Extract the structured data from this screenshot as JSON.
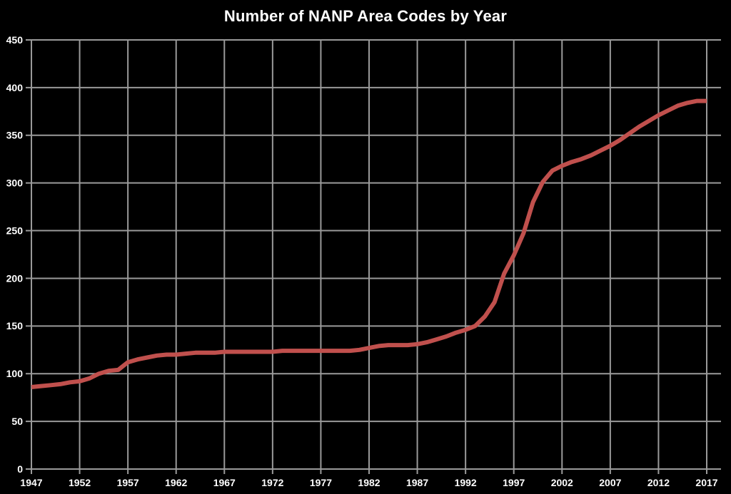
{
  "chart_data": {
    "type": "line",
    "title": "Number of NANP Area Codes by Year",
    "xlabel": "",
    "ylabel": "",
    "xlim": [
      1947,
      2017
    ],
    "ylim": [
      0,
      450
    ],
    "xticks": [
      1947,
      1952,
      1957,
      1962,
      1967,
      1972,
      1977,
      1982,
      1987,
      1992,
      1997,
      2002,
      2007,
      2012,
      2017
    ],
    "yticks": [
      0,
      50,
      100,
      150,
      200,
      250,
      300,
      350,
      400,
      450
    ],
    "grid": true,
    "legend": false,
    "x": [
      1947,
      1948,
      1949,
      1950,
      1951,
      1952,
      1953,
      1954,
      1955,
      1956,
      1957,
      1958,
      1959,
      1960,
      1961,
      1962,
      1963,
      1964,
      1965,
      1966,
      1967,
      1968,
      1969,
      1970,
      1971,
      1972,
      1973,
      1974,
      1975,
      1976,
      1977,
      1978,
      1979,
      1980,
      1981,
      1982,
      1983,
      1984,
      1985,
      1986,
      1987,
      1988,
      1989,
      1990,
      1991,
      1992,
      1993,
      1994,
      1995,
      1996,
      1997,
      1998,
      1999,
      2000,
      2001,
      2002,
      2003,
      2004,
      2005,
      2006,
      2007,
      2008,
      2009,
      2010,
      2011,
      2012,
      2013,
      2014,
      2015,
      2016,
      2017
    ],
    "series": [
      {
        "name": "Number of NANP area codes",
        "values": [
          86,
          87,
          88,
          89,
          91,
          92,
          95,
          100,
          103,
          104,
          112,
          115,
          117,
          119,
          120,
          120,
          121,
          122,
          122,
          122,
          123,
          123,
          123,
          123,
          123,
          123,
          124,
          124,
          124,
          124,
          124,
          124,
          124,
          124,
          125,
          127,
          129,
          130,
          130,
          130,
          131,
          133,
          136,
          139,
          143,
          146,
          150,
          160,
          175,
          205,
          224,
          247,
          280,
          301,
          313,
          318,
          322,
          325,
          329,
          334,
          339,
          345,
          352,
          359,
          365,
          371,
          376,
          381,
          384,
          386,
          386
        ]
      }
    ],
    "colors": {
      "line": "#c0504d",
      "grid": "#9a9a9a",
      "text": "#ffffff",
      "background": "#000000"
    }
  }
}
